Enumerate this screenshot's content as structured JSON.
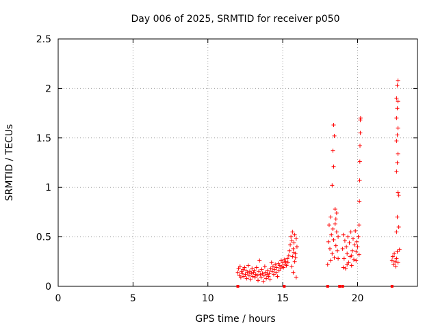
{
  "chart_data": {
    "type": "scatter",
    "title": "Day 006 of 2025, SRMTID for receiver p050",
    "xlabel": "GPS time / hours",
    "ylabel": "SRMTID / TECUs",
    "xlim": [
      0,
      24
    ],
    "ylim": [
      0,
      2.5
    ],
    "xticks": [
      0,
      5,
      10,
      15,
      20
    ],
    "yticks": [
      0,
      0.5,
      1,
      1.5,
      2,
      2.5
    ],
    "xtick_labels": [
      "0",
      "5",
      "10",
      "15",
      "20"
    ],
    "ytick_labels": [
      "0",
      "0.5",
      "1",
      "1.5",
      "2",
      "2.5"
    ],
    "grid": true,
    "marker": "+",
    "color": "#ff0000",
    "series": [
      {
        "name": "SRMTID",
        "points": [
          [
            12.0,
            0.14
          ],
          [
            12.05,
            0.18
          ],
          [
            12.1,
            0.11
          ],
          [
            12.15,
            0.2
          ],
          [
            12.2,
            0.09
          ],
          [
            12.25,
            0.15
          ],
          [
            12.3,
            0.13
          ],
          [
            12.35,
            0.17
          ],
          [
            12.4,
            0.1
          ],
          [
            12.45,
            0.19
          ],
          [
            12.5,
            0.12
          ],
          [
            12.55,
            0.16
          ],
          [
            12.6,
            0.08
          ],
          [
            12.65,
            0.14
          ],
          [
            12.7,
            0.21
          ],
          [
            12.75,
            0.11
          ],
          [
            12.8,
            0.15
          ],
          [
            12.85,
            0.07
          ],
          [
            12.9,
            0.13
          ],
          [
            12.95,
            0.18
          ],
          [
            13.0,
            0.1
          ],
          [
            13.05,
            0.14
          ],
          [
            13.1,
            0.16
          ],
          [
            13.15,
            0.09
          ],
          [
            13.2,
            0.12
          ],
          [
            13.25,
            0.19
          ],
          [
            13.3,
            0.11
          ],
          [
            13.35,
            0.06
          ],
          [
            13.4,
            0.15
          ],
          [
            13.45,
            0.26
          ],
          [
            13.5,
            0.12
          ],
          [
            13.55,
            0.09
          ],
          [
            13.6,
            0.17
          ],
          [
            13.65,
            0.13
          ],
          [
            13.7,
            0.05
          ],
          [
            13.75,
            0.11
          ],
          [
            13.8,
            0.2
          ],
          [
            13.85,
            0.14
          ],
          [
            13.9,
            0.08
          ],
          [
            13.95,
            0.12
          ],
          [
            14.0,
            0.16
          ],
          [
            14.05,
            0.1
          ],
          [
            14.1,
            0.13
          ],
          [
            14.15,
            0.07
          ],
          [
            14.2,
            0.18
          ],
          [
            14.25,
            0.24
          ],
          [
            14.3,
            0.15
          ],
          [
            14.35,
            0.2
          ],
          [
            14.4,
            0.12
          ],
          [
            14.45,
            0.17
          ],
          [
            14.5,
            0.22
          ],
          [
            14.55,
            0.14
          ],
          [
            14.6,
            0.19
          ],
          [
            14.65,
            0.1
          ],
          [
            14.7,
            0.23
          ],
          [
            14.75,
            0.16
          ],
          [
            14.8,
            0.21
          ],
          [
            14.85,
            0.18
          ],
          [
            14.9,
            0.26
          ],
          [
            14.95,
            0.2
          ],
          [
            15.0,
            0.24
          ],
          [
            15.05,
            0.19
          ],
          [
            15.1,
            0.27
          ],
          [
            15.15,
            0.22
          ],
          [
            15.2,
            0.25
          ],
          [
            15.25,
            0.21
          ],
          [
            15.3,
            0.28
          ],
          [
            15.35,
            0.24
          ],
          [
            15.4,
            0.31
          ],
          [
            15.45,
            0.36
          ],
          [
            15.5,
            0.42
          ],
          [
            15.55,
            0.5
          ],
          [
            15.6,
            0.46
          ],
          [
            15.65,
            0.55
          ],
          [
            15.7,
            0.38
          ],
          [
            15.75,
            0.44
          ],
          [
            15.8,
            0.52
          ],
          [
            15.85,
            0.33
          ],
          [
            15.9,
            0.48
          ],
          [
            15.95,
            0.4
          ],
          [
            15.6,
            0.2
          ],
          [
            15.7,
            0.14
          ],
          [
            15.8,
            0.25
          ],
          [
            15.9,
            0.09
          ],
          [
            15.85,
            0.29
          ],
          [
            15.75,
            0.34
          ],
          [
            15.65,
            0.3
          ],
          [
            18.0,
            0.22
          ],
          [
            18.05,
            0.45
          ],
          [
            18.1,
            0.62
          ],
          [
            18.15,
            0.38
          ],
          [
            18.2,
            0.7
          ],
          [
            18.25,
            0.52
          ],
          [
            18.3,
            0.33
          ],
          [
            18.35,
            0.58
          ],
          [
            18.4,
            0.47
          ],
          [
            18.45,
            0.29
          ],
          [
            18.5,
            0.63
          ],
          [
            18.55,
            0.41
          ],
          [
            18.6,
            0.55
          ],
          [
            18.65,
            0.36
          ],
          [
            18.7,
            0.5
          ],
          [
            18.3,
            1.02
          ],
          [
            18.4,
            1.21
          ],
          [
            18.35,
            1.37
          ],
          [
            18.45,
            1.52
          ],
          [
            18.4,
            1.63
          ],
          [
            18.5,
            0.78
          ],
          [
            18.6,
            0.74
          ],
          [
            18.2,
            0.26
          ],
          [
            18.7,
            0.28
          ],
          [
            18.55,
            0.68
          ],
          [
            19.0,
            0.38
          ],
          [
            19.05,
            0.52
          ],
          [
            19.1,
            0.28
          ],
          [
            19.15,
            0.46
          ],
          [
            19.2,
            0.18
          ],
          [
            19.25,
            0.4
          ],
          [
            19.3,
            0.33
          ],
          [
            19.35,
            0.5
          ],
          [
            19.4,
            0.24
          ],
          [
            19.45,
            0.44
          ],
          [
            19.5,
            0.3
          ],
          [
            19.55,
            0.55
          ],
          [
            19.6,
            0.21
          ],
          [
            19.65,
            0.36
          ],
          [
            19.7,
            0.48
          ],
          [
            19.75,
            0.27
          ],
          [
            19.8,
            0.42
          ],
          [
            19.85,
            0.56
          ],
          [
            19.9,
            0.35
          ],
          [
            19.95,
            0.45
          ],
          [
            20.0,
            0.4
          ],
          [
            20.05,
            0.5
          ],
          [
            20.1,
            0.32
          ],
          [
            20.1,
            0.62
          ],
          [
            20.12,
            0.86
          ],
          [
            20.14,
            1.07
          ],
          [
            20.15,
            1.26
          ],
          [
            20.16,
            1.42
          ],
          [
            20.18,
            1.55
          ],
          [
            20.18,
            1.68
          ],
          [
            20.2,
            1.7
          ],
          [
            19.05,
            0.19
          ],
          [
            19.3,
            0.22
          ],
          [
            19.6,
            0.31
          ],
          [
            19.9,
            0.26
          ],
          [
            22.3,
            0.26
          ],
          [
            22.35,
            0.3
          ],
          [
            22.4,
            0.22
          ],
          [
            22.45,
            0.33
          ],
          [
            22.5,
            0.25
          ],
          [
            22.55,
            0.2
          ],
          [
            22.6,
            0.28
          ],
          [
            22.65,
            0.35
          ],
          [
            22.7,
            0.24
          ],
          [
            22.6,
            0.55
          ],
          [
            22.65,
            0.7
          ],
          [
            22.7,
            0.95
          ],
          [
            22.6,
            1.16
          ],
          [
            22.65,
            1.25
          ],
          [
            22.7,
            1.34
          ],
          [
            22.6,
            1.47
          ],
          [
            22.65,
            1.53
          ],
          [
            22.7,
            1.6
          ],
          [
            22.6,
            1.7
          ],
          [
            22.65,
            1.8
          ],
          [
            22.7,
            1.87
          ],
          [
            22.6,
            1.9
          ],
          [
            22.65,
            2.03
          ],
          [
            22.7,
            2.08
          ],
          [
            22.75,
            0.92
          ],
          [
            22.75,
            0.6
          ],
          [
            22.8,
            0.37
          ]
        ]
      }
    ],
    "zero_markers": [
      12.0,
      15.1,
      18.0,
      18.8,
      19.0,
      22.3
    ]
  }
}
